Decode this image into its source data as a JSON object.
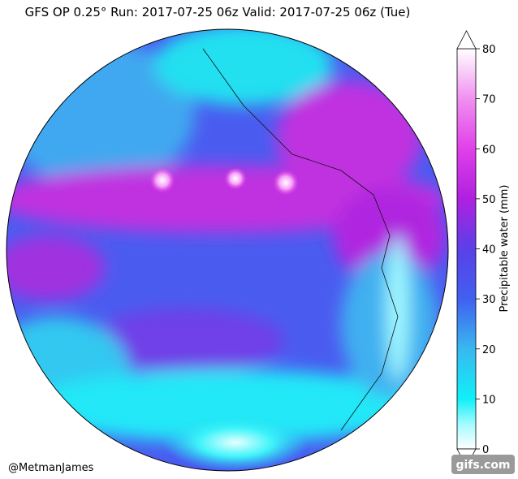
{
  "title": "GFS OP 0.25° Run: 2017-07-25 06z Valid: 2017-07-25 06z (Tue)",
  "colorbar": {
    "label": "Precipitable water (mm)",
    "lim": [
      0,
      80
    ],
    "ticks": [
      0,
      10,
      20,
      30,
      40,
      50,
      60,
      70,
      80
    ]
  },
  "credit": "@MetmanJames",
  "watermark": "gifs.com"
}
